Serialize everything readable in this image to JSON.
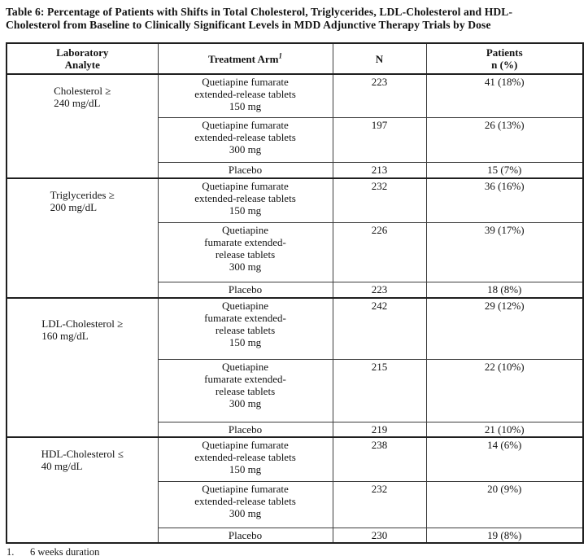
{
  "title": "Table 6: Percentage of Patients with Shifts in Total Cholesterol, Triglycerides, LDL-Cholesterol and HDL-\nCholesterol from Baseline to Clinically Significant Levels in MDD Adjunctive Therapy Trials by Dose",
  "table": {
    "headers": {
      "analyte": "Laboratory\nAnalyte",
      "treatment_arm": "Treatment Arm",
      "treatment_arm_sup": "1",
      "n": "N",
      "patients": "Patients\nn (%)"
    },
    "groups": [
      {
        "analyte": "Cholesterol ≥\n240 mg/dL",
        "rows": [
          {
            "arm": "Quetiapine fumarate\nextended-release tablets\n150 mg",
            "n": "223",
            "patients": "41 (18%)"
          },
          {
            "arm": "Quetiapine fumarate\nextended-release tablets\n300 mg",
            "n": "197",
            "patients": "26 (13%)"
          },
          {
            "arm": "Placebo",
            "n": "213",
            "patients": "15 (7%)"
          }
        ]
      },
      {
        "analyte": "Triglycerides ≥\n200 mg/dL",
        "rows": [
          {
            "arm": "Quetiapine fumarate\nextended-release tablets\n150 mg",
            "n": "232",
            "patients": "36 (16%)"
          },
          {
            "arm": "Quetiapine\nfumarate extended-\nrelease tablets\n300 mg",
            "n": "226",
            "patients": "39 (17%)"
          },
          {
            "arm": "Placebo",
            "n": "223",
            "patients": "18 (8%)"
          }
        ]
      },
      {
        "analyte": "LDL-Cholesterol ≥\n160 mg/dL",
        "rows": [
          {
            "arm": "Quetiapine\nfumarate extended-\nrelease tablets\n150 mg",
            "n": "242",
            "patients": "29 (12%)"
          },
          {
            "arm": "Quetiapine\nfumarate extended-\nrelease tablets\n300 mg",
            "n": "215",
            "patients": "22 (10%)"
          },
          {
            "arm": "Placebo",
            "n": "219",
            "patients": "21 (10%)"
          }
        ]
      },
      {
        "analyte": "HDL-Cholesterol ≤\n40 mg/dL",
        "rows": [
          {
            "arm": "Quetiapine fumarate\nextended-release tablets\n150 mg",
            "n": "238",
            "patients": "14 (6%)"
          },
          {
            "arm": "Quetiapine fumarate\nextended-release tablets\n300 mg",
            "n": "232",
            "patients": "20 (9%)"
          },
          {
            "arm": "Placebo",
            "n": "230",
            "patients": "19 (8%)"
          }
        ]
      }
    ]
  },
  "footnote": {
    "marker": "1.",
    "text": "6 weeks duration"
  }
}
